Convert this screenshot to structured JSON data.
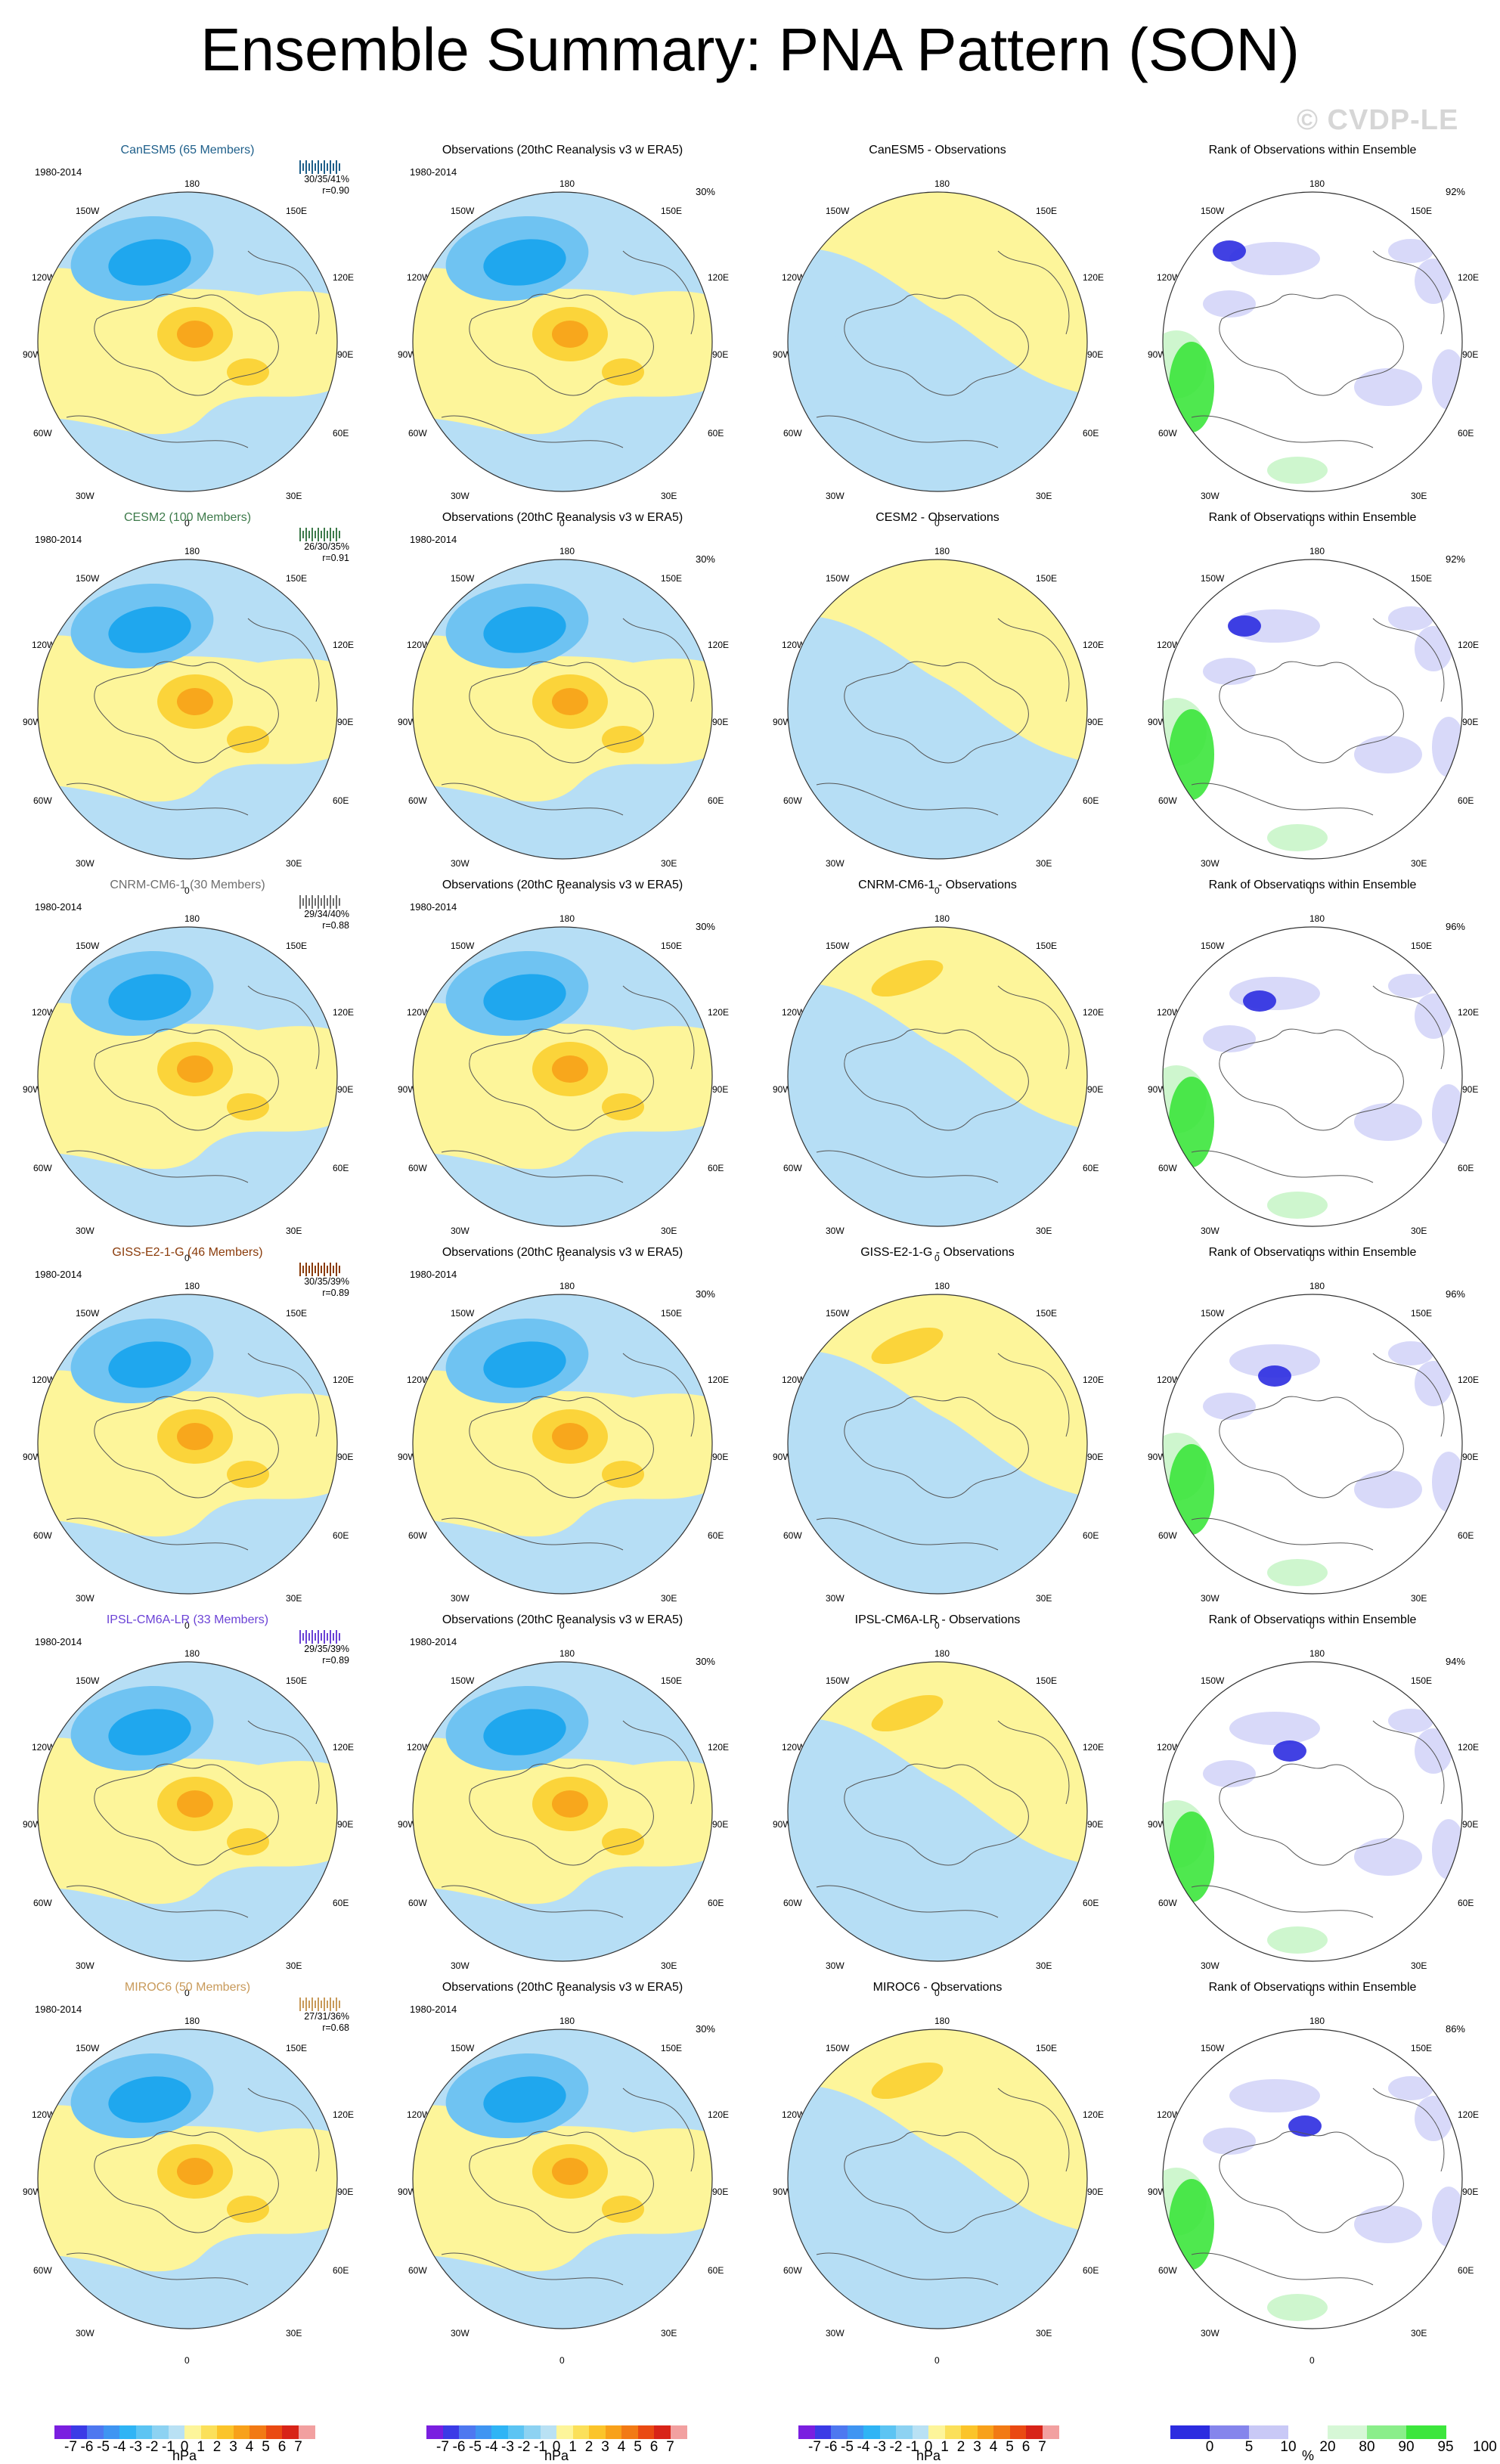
{
  "title": "Ensemble Summary: PNA Pattern (SON)",
  "watermark": "© CVDP-LE",
  "colors": {
    "blue_dark": "#1fa7ee",
    "blue_mid": "#6fc3f2",
    "blue_light": "#b6def5",
    "yellow_light": "#fdf59a",
    "orange_mid": "#fbd43a",
    "orange_dark": "#f8a71c",
    "rank_blue_dark": "#2c2ce0",
    "rank_blue_light": "#d4d5f8",
    "rank_green": "#3ce63c",
    "rank_green_light": "#c9f5c9"
  },
  "lon_labels": {
    "top": "180",
    "top_left": "150W",
    "top_right": "150E",
    "ul": "120W",
    "ur": "120E",
    "left": "90W",
    "right": "90E",
    "ll": "60W",
    "lr": "60E",
    "bl": "30W",
    "br": "30E",
    "bottom": "0"
  },
  "rows": [
    {
      "model": "CanESM5 (65 Members)",
      "model_color": "#1e5f8a",
      "period": "1980-2014",
      "stats": "30/35/41%",
      "r": "r=0.90",
      "obs_title": "Observations (20thC Reanalysis v3 w ERA5)",
      "obs_pct": "30%",
      "diff_title": "CanESM5 - Observations",
      "rank_title": "Rank of Observations within Ensemble",
      "rank_pct": "92%"
    },
    {
      "model": "CESM2 (100 Members)",
      "model_color": "#3d7a4a",
      "period": "1980-2014",
      "stats": "26/30/35%",
      "r": "r=0.91",
      "obs_title": "Observations (20thC Reanalysis v3 w ERA5)",
      "obs_pct": "30%",
      "diff_title": "CESM2 - Observations",
      "rank_title": "Rank of Observations within Ensemble",
      "rank_pct": "92%"
    },
    {
      "model": "CNRM-CM6-1 (30 Members)",
      "model_color": "#6e6e6e",
      "period": "1980-2014",
      "stats": "29/34/40%",
      "r": "r=0.88",
      "obs_title": "Observations (20thC Reanalysis v3 w ERA5)",
      "obs_pct": "30%",
      "diff_title": "CNRM-CM6-1 - Observations",
      "rank_title": "Rank of Observations within Ensemble",
      "rank_pct": "96%"
    },
    {
      "model": "GISS-E2-1-G (46 Members)",
      "model_color": "#8a3b0a",
      "period": "1980-2014",
      "stats": "30/35/39%",
      "r": "r=0.89",
      "obs_title": "Observations (20thC Reanalysis v3 w ERA5)",
      "obs_pct": "30%",
      "diff_title": "GISS-E2-1-G - Observations",
      "rank_title": "Rank of Observations within Ensemble",
      "rank_pct": "96%"
    },
    {
      "model": "IPSL-CM6A-LR (33 Members)",
      "model_color": "#6b42d6",
      "period": "1980-2014",
      "stats": "29/35/39%",
      "r": "r=0.89",
      "obs_title": "Observations (20thC Reanalysis v3 w ERA5)",
      "obs_pct": "30%",
      "diff_title": "IPSL-CM6A-LR - Observations",
      "rank_title": "Rank of Observations within Ensemble",
      "rank_pct": "94%"
    },
    {
      "model": "MIROC6 (50 Members)",
      "model_color": "#c89a5a",
      "period": "1980-2014",
      "stats": "27/31/36%",
      "r": "r=0.68",
      "obs_title": "Observations (20thC Reanalysis v3 w ERA5)",
      "obs_pct": "30%",
      "diff_title": "MIROC6 - Observations",
      "rank_title": "Rank of Observations within Ensemble",
      "rank_pct": "86%"
    }
  ],
  "chart_data": {
    "type": "heatmap",
    "projection": "polar stereographic, Northern Hemisphere",
    "season": "SON",
    "variable": "PNA pattern sea level pressure anomaly",
    "hpa_colorbar": {
      "ticks": [
        "-7",
        "-6",
        "-5",
        "-4",
        "-3",
        "-2",
        "-1",
        "0",
        "1",
        "2",
        "3",
        "4",
        "5",
        "6",
        "7"
      ],
      "unit": "hPa",
      "colors": [
        "#7a1fe0",
        "#3b3be6",
        "#4e78f0",
        "#3f95f2",
        "#2fb4f5",
        "#5cc4f3",
        "#8dd2f2",
        "#b9e1f4",
        "#fdf59a",
        "#fbe05a",
        "#fbc42a",
        "#f8a11a",
        "#f27a14",
        "#ea4a12",
        "#d82418",
        "#f2a0a0"
      ]
    },
    "rank_colorbar": {
      "ticks": [
        "0",
        "5",
        "10",
        "20",
        "80",
        "90",
        "95",
        "100"
      ],
      "unit": "%",
      "colors": [
        "#2c2ce0",
        "#8585ec",
        "#c9c9f6",
        "#ffffff",
        "#d6f7d6",
        "#8aee8a",
        "#3ce63c"
      ]
    }
  }
}
